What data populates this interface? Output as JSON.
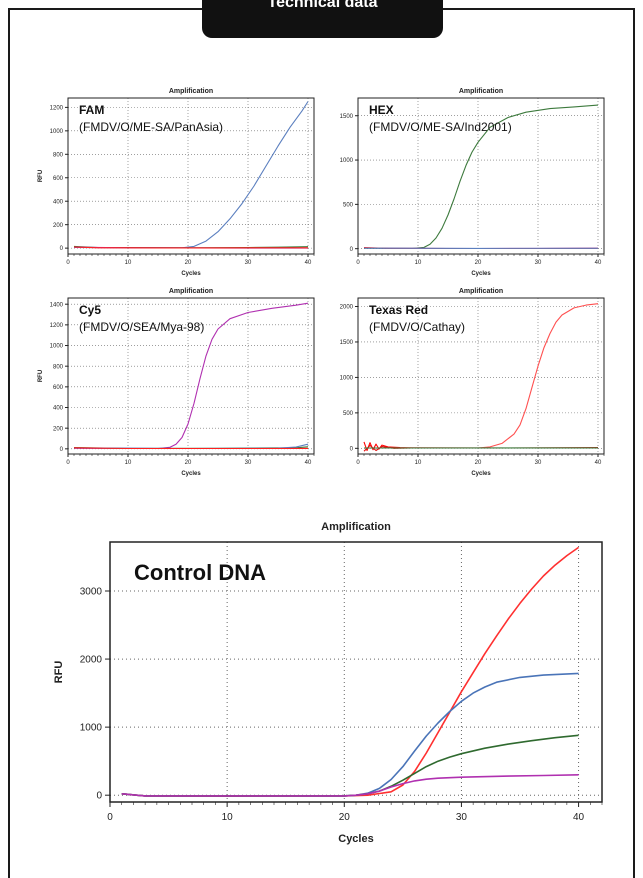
{
  "header": {
    "title": "Technical data"
  },
  "colors": {
    "blue": "#5b7fbf",
    "green": "#3d7a3d",
    "purple": "#b030b0",
    "red": "#ff3030",
    "dark": "#222222"
  },
  "chart_data": [
    {
      "type": "line",
      "title": "Amplification",
      "xlabel": "Cycles",
      "ylabel": "RFU",
      "annotation": {
        "name": "FAM",
        "target": "(FMDV/O/ME-SA/PanAsia)"
      },
      "xlim": [
        0,
        41
      ],
      "ylim": [
        -50,
        1280
      ],
      "x_ticks": [
        0,
        10,
        20,
        30,
        40
      ],
      "y_ticks": [
        0,
        200,
        400,
        600,
        800,
        1000,
        1200
      ],
      "grid": true,
      "series": [
        {
          "color": "#5b7fbf",
          "points": [
            [
              1,
              5
            ],
            [
              10,
              3
            ],
            [
              19,
              3
            ],
            [
              21,
              15
            ],
            [
              23,
              60
            ],
            [
              25,
              140
            ],
            [
              27,
              250
            ],
            [
              29,
              380
            ],
            [
              31,
              530
            ],
            [
              33,
              700
            ],
            [
              35,
              870
            ],
            [
              37,
              1030
            ],
            [
              39,
              1170
            ],
            [
              40,
              1250
            ]
          ]
        },
        {
          "color": "#3d7a3d",
          "points": [
            [
              1,
              15
            ],
            [
              5,
              5
            ],
            [
              10,
              5
            ],
            [
              20,
              3
            ],
            [
              30,
              5
            ],
            [
              35,
              8
            ],
            [
              40,
              12
            ]
          ]
        },
        {
          "color": "#b030b0",
          "points": [
            [
              1,
              8
            ],
            [
              10,
              3
            ],
            [
              20,
              2
            ],
            [
              30,
              0
            ],
            [
              40,
              0
            ]
          ]
        },
        {
          "color": "#ff2020",
          "points": [
            [
              1,
              10
            ],
            [
              5,
              3
            ],
            [
              15,
              2
            ],
            [
              25,
              2
            ],
            [
              40,
              3
            ]
          ]
        }
      ]
    },
    {
      "type": "line",
      "title": "Amplification",
      "xlabel": "Cycles",
      "ylabel": "",
      "annotation": {
        "name": "HEX",
        "target": "(FMDV/O/ME-SA/Ind2001)"
      },
      "xlim": [
        0,
        41
      ],
      "ylim": [
        -60,
        1700
      ],
      "x_ticks": [
        0,
        10,
        20,
        30,
        40
      ],
      "y_ticks": [
        0,
        500,
        1000,
        1500
      ],
      "grid": true,
      "series": [
        {
          "color": "#3d7a3d",
          "points": [
            [
              1,
              5
            ],
            [
              9,
              3
            ],
            [
              11,
              15
            ],
            [
              12,
              50
            ],
            [
              13,
              120
            ],
            [
              14,
              230
            ],
            [
              15,
              380
            ],
            [
              16,
              560
            ],
            [
              17,
              760
            ],
            [
              18,
              940
            ],
            [
              19,
              1090
            ],
            [
              20,
              1200
            ],
            [
              22,
              1370
            ],
            [
              25,
              1480
            ],
            [
              28,
              1540
            ],
            [
              32,
              1580
            ],
            [
              36,
              1600
            ],
            [
              40,
              1620
            ]
          ]
        },
        {
          "color": "#b030b0",
          "points": [
            [
              1,
              8
            ],
            [
              10,
              3
            ],
            [
              20,
              2
            ],
            [
              30,
              3
            ],
            [
              40,
              5
            ]
          ]
        },
        {
          "color": "#ff2020",
          "points": [
            [
              1,
              12
            ],
            [
              5,
              4
            ],
            [
              15,
              2
            ],
            [
              30,
              2
            ],
            [
              40,
              3
            ]
          ]
        },
        {
          "color": "#5b7fbf",
          "points": [
            [
              1,
              6
            ],
            [
              20,
              3
            ],
            [
              40,
              4
            ]
          ]
        }
      ]
    },
    {
      "type": "line",
      "title": "Amplification",
      "xlabel": "Cycles",
      "ylabel": "RFU",
      "annotation": {
        "name": "Cy5",
        "target": "(FMDV/O/SEA/Mya-98)"
      },
      "xlim": [
        0,
        41
      ],
      "ylim": [
        -50,
        1460
      ],
      "x_ticks": [
        0,
        10,
        20,
        30,
        40
      ],
      "y_ticks": [
        0,
        200,
        400,
        600,
        800,
        1000,
        1200,
        1400
      ],
      "grid": true,
      "series": [
        {
          "color": "#b030b0",
          "points": [
            [
              1,
              5
            ],
            [
              15,
              3
            ],
            [
              17,
              15
            ],
            [
              18,
              45
            ],
            [
              19,
              110
            ],
            [
              20,
              240
            ],
            [
              21,
              440
            ],
            [
              22,
              680
            ],
            [
              23,
              900
            ],
            [
              24,
              1060
            ],
            [
              25,
              1160
            ],
            [
              27,
              1260
            ],
            [
              30,
              1320
            ],
            [
              34,
              1360
            ],
            [
              38,
              1390
            ],
            [
              40,
              1410
            ]
          ]
        },
        {
          "color": "#3d7a3d",
          "points": [
            [
              1,
              12
            ],
            [
              10,
              4
            ],
            [
              25,
              5
            ],
            [
              38,
              10
            ],
            [
              40,
              20
            ]
          ]
        },
        {
          "color": "#5b7fbf",
          "points": [
            [
              1,
              8
            ],
            [
              20,
              3
            ],
            [
              35,
              6
            ],
            [
              38,
              18
            ],
            [
              40,
              45
            ]
          ]
        },
        {
          "color": "#ff2020",
          "points": [
            [
              1,
              10
            ],
            [
              10,
              3
            ],
            [
              30,
              3
            ],
            [
              40,
              4
            ]
          ]
        }
      ]
    },
    {
      "type": "line",
      "title": "Amplification",
      "xlabel": "Cycles",
      "ylabel": "",
      "annotation": {
        "name": "Texas Red",
        "target": "(FMDV/O/Cathay)"
      },
      "xlim": [
        0,
        41
      ],
      "ylim": [
        -80,
        2120
      ],
      "x_ticks": [
        0,
        10,
        20,
        30,
        40
      ],
      "y_ticks": [
        0,
        500,
        1000,
        1500,
        2000
      ],
      "grid": true,
      "series": [
        {
          "color": "#ff5050",
          "points": [
            [
              1,
              5
            ],
            [
              20,
              5
            ],
            [
              22,
              20
            ],
            [
              24,
              70
            ],
            [
              26,
              200
            ],
            [
              27,
              330
            ],
            [
              28,
              560
            ],
            [
              29,
              860
            ],
            [
              30,
              1160
            ],
            [
              31,
              1420
            ],
            [
              32,
              1620
            ],
            [
              33,
              1780
            ],
            [
              34,
              1880
            ],
            [
              36,
              1980
            ],
            [
              38,
              2020
            ],
            [
              40,
              2040
            ]
          ]
        },
        {
          "color": "#ff0000",
          "points": [
            [
              1,
              90
            ],
            [
              1.5,
              -30
            ],
            [
              2,
              80
            ],
            [
              2.5,
              -20
            ],
            [
              3,
              60
            ],
            [
              3.5,
              -10
            ],
            [
              4,
              45
            ],
            [
              5,
              20
            ],
            [
              7,
              10
            ],
            [
              10,
              5
            ],
            [
              40,
              5
            ]
          ]
        },
        {
          "color": "#dd1010",
          "points": [
            [
              1,
              -40
            ],
            [
              2,
              40
            ],
            [
              3,
              -30
            ],
            [
              4,
              25
            ],
            [
              6,
              0
            ],
            [
              10,
              8
            ],
            [
              25,
              5
            ],
            [
              40,
              10
            ]
          ]
        },
        {
          "color": "#3d7a3d",
          "points": [
            [
              1,
              4
            ],
            [
              40,
              6
            ]
          ]
        }
      ]
    },
    {
      "type": "line",
      "title": "Amplification",
      "xlabel": "Cycles",
      "ylabel": "RFU",
      "annotation": {
        "name": "Control DNA",
        "target": ""
      },
      "xlim": [
        0,
        42
      ],
      "ylim": [
        -100,
        3720
      ],
      "x_ticks": [
        0,
        10,
        20,
        30,
        40
      ],
      "y_ticks": [
        0,
        1000,
        2000,
        3000
      ],
      "grid": true,
      "series": [
        {
          "color": "#ff3030",
          "points": [
            [
              1,
              20
            ],
            [
              3,
              -10
            ],
            [
              10,
              -15
            ],
            [
              20,
              -10
            ],
            [
              22,
              0
            ],
            [
              24,
              50
            ],
            [
              25,
              150
            ],
            [
              26,
              350
            ],
            [
              27,
              620
            ],
            [
              28,
              920
            ],
            [
              29,
              1220
            ],
            [
              30,
              1520
            ],
            [
              31,
              1800
            ],
            [
              32,
              2080
            ],
            [
              33,
              2340
            ],
            [
              34,
              2590
            ],
            [
              35,
              2820
            ],
            [
              36,
              3030
            ],
            [
              37,
              3220
            ],
            [
              38,
              3380
            ],
            [
              39,
              3520
            ],
            [
              40,
              3640
            ]
          ]
        },
        {
          "color": "#4a74b8",
          "points": [
            [
              1,
              20
            ],
            [
              3,
              -10
            ],
            [
              20,
              -10
            ],
            [
              21,
              0
            ],
            [
              22,
              30
            ],
            [
              23,
              100
            ],
            [
              24,
              230
            ],
            [
              25,
              420
            ],
            [
              26,
              650
            ],
            [
              27,
              870
            ],
            [
              28,
              1060
            ],
            [
              29,
              1230
            ],
            [
              30,
              1380
            ],
            [
              31,
              1500
            ],
            [
              32,
              1590
            ],
            [
              33,
              1660
            ],
            [
              35,
              1730
            ],
            [
              37,
              1765
            ],
            [
              40,
              1790
            ]
          ]
        },
        {
          "color": "#2f6a2f",
          "points": [
            [
              1,
              20
            ],
            [
              3,
              -10
            ],
            [
              20,
              -10
            ],
            [
              21,
              0
            ],
            [
              22,
              20
            ],
            [
              23,
              60
            ],
            [
              24,
              130
            ],
            [
              25,
              220
            ],
            [
              26,
              320
            ],
            [
              27,
              420
            ],
            [
              28,
              500
            ],
            [
              29,
              560
            ],
            [
              30,
              610
            ],
            [
              32,
              690
            ],
            [
              34,
              750
            ],
            [
              36,
              800
            ],
            [
              38,
              845
            ],
            [
              40,
              880
            ]
          ]
        },
        {
          "color": "#b030b0",
          "points": [
            [
              1,
              20
            ],
            [
              3,
              -10
            ],
            [
              20,
              -10
            ],
            [
              21,
              0
            ],
            [
              22,
              20
            ],
            [
              23,
              60
            ],
            [
              24,
              120
            ],
            [
              25,
              170
            ],
            [
              26,
              210
            ],
            [
              27,
              235
            ],
            [
              28,
              250
            ],
            [
              30,
              265
            ],
            [
              34,
              280
            ],
            [
              37,
              290
            ],
            [
              40,
              300
            ]
          ]
        }
      ]
    }
  ]
}
